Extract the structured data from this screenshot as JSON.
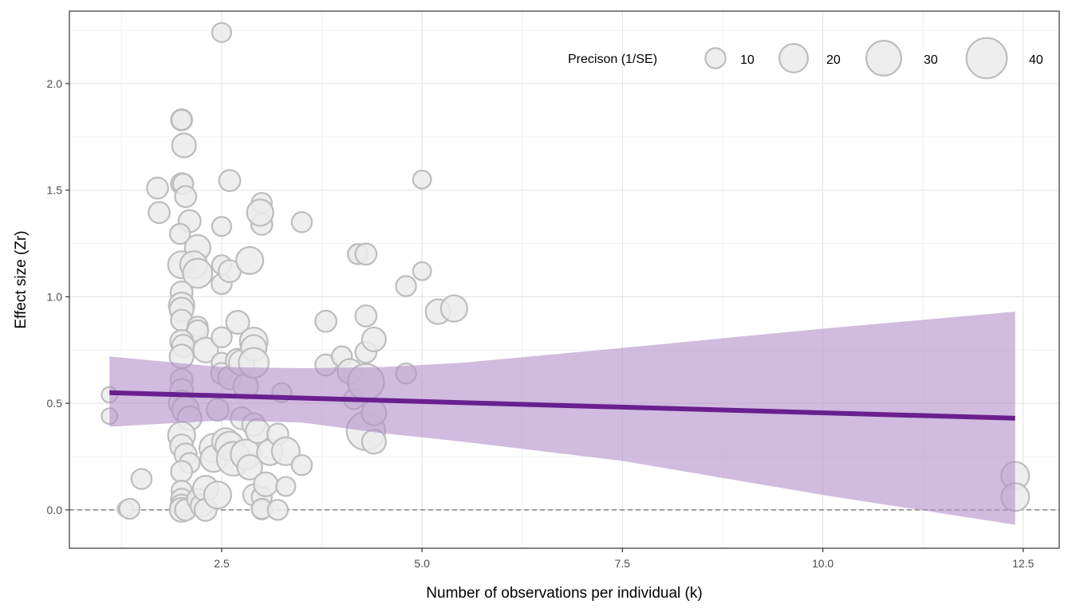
{
  "chart_data": {
    "type": "scatter",
    "title": "",
    "xlabel": "Number of observations per individual (k)",
    "ylabel": "Effect size (Zr)",
    "xlim": [
      0.6,
      12.95
    ],
    "ylim": [
      -0.18,
      2.34
    ],
    "x_ticks": [
      2.5,
      5.0,
      7.5,
      10.0,
      12.5
    ],
    "x_tick_labels": [
      "2.5",
      "5.0",
      "7.5",
      "10.0",
      "12.5"
    ],
    "y_ticks": [
      0.0,
      0.5,
      1.0,
      1.5,
      2.0
    ],
    "y_tick_labels": [
      "0.0",
      "0.5",
      "1.0",
      "1.5",
      "2.0"
    ],
    "grid": true,
    "reference_line": {
      "y": 0,
      "style": "dashed"
    },
    "legend": {
      "title": "Precison (1/SE)",
      "placement": "top-right",
      "sizes": [
        10,
        20,
        30,
        40
      ],
      "labels": [
        "10",
        "20",
        "30",
        "40"
      ]
    },
    "regression": {
      "x_range": [
        1.1,
        12.4
      ],
      "y_start": 0.55,
      "y_end": 0.43,
      "band": [
        {
          "x": 1.1,
          "lo": 0.39,
          "hi": 0.72
        },
        {
          "x": 2.5,
          "lo": 0.42,
          "hi": 0.67
        },
        {
          "x": 3.5,
          "lo": 0.41,
          "hi": 0.665
        },
        {
          "x": 4.5,
          "lo": 0.36,
          "hi": 0.67
        },
        {
          "x": 5.5,
          "lo": 0.32,
          "hi": 0.69
        },
        {
          "x": 7.5,
          "lo": 0.23,
          "hi": 0.76
        },
        {
          "x": 10.0,
          "lo": 0.07,
          "hi": 0.85
        },
        {
          "x": 12.4,
          "lo": -0.07,
          "hi": 0.93
        }
      ]
    },
    "series": [
      {
        "points": [
          {
            "x": 2.5,
            "y": 2.24,
            "p": 9
          },
          {
            "x": 1.1,
            "y": 0.54,
            "p": 6
          },
          {
            "x": 1.1,
            "y": 0.44,
            "p": 6
          },
          {
            "x": 1.3,
            "y": 0.005,
            "p": 6
          },
          {
            "x": 1.35,
            "y": 0.005,
            "p": 10
          },
          {
            "x": 1.5,
            "y": 0.145,
            "p": 10
          },
          {
            "x": 1.7,
            "y": 1.51,
            "p": 11
          },
          {
            "x": 1.72,
            "y": 1.395,
            "p": 11
          },
          {
            "x": 2.0,
            "y": 1.83,
            "p": 11
          },
          {
            "x": 2.0,
            "y": 1.83,
            "p": 10
          },
          {
            "x": 2.03,
            "y": 1.71,
            "p": 14
          },
          {
            "x": 2.0,
            "y": 1.53,
            "p": 11
          },
          {
            "x": 2.02,
            "y": 1.53,
            "p": 10
          },
          {
            "x": 2.05,
            "y": 1.47,
            "p": 11
          },
          {
            "x": 2.1,
            "y": 1.355,
            "p": 12
          },
          {
            "x": 1.98,
            "y": 1.295,
            "p": 10
          },
          {
            "x": 2.2,
            "y": 1.23,
            "p": 16
          },
          {
            "x": 2.0,
            "y": 1.15,
            "p": 18
          },
          {
            "x": 2.15,
            "y": 1.15,
            "p": 18
          },
          {
            "x": 2.2,
            "y": 1.11,
            "p": 21
          },
          {
            "x": 2.0,
            "y": 1.02,
            "p": 12
          },
          {
            "x": 2.0,
            "y": 0.96,
            "p": 16
          },
          {
            "x": 2.0,
            "y": 0.94,
            "p": 14
          },
          {
            "x": 2.0,
            "y": 0.89,
            "p": 11
          },
          {
            "x": 2.2,
            "y": 0.86,
            "p": 10
          },
          {
            "x": 2.2,
            "y": 0.84,
            "p": 11
          },
          {
            "x": 2.0,
            "y": 0.79,
            "p": 13
          },
          {
            "x": 2.02,
            "y": 0.77,
            "p": 12
          },
          {
            "x": 2.0,
            "y": 0.72,
            "p": 14
          },
          {
            "x": 2.3,
            "y": 0.75,
            "p": 15
          },
          {
            "x": 2.0,
            "y": 0.61,
            "p": 12
          },
          {
            "x": 2.0,
            "y": 0.56,
            "p": 13
          },
          {
            "x": 2.0,
            "y": 0.5,
            "p": 16
          },
          {
            "x": 2.05,
            "y": 0.47,
            "p": 18
          },
          {
            "x": 2.1,
            "y": 0.43,
            "p": 14
          },
          {
            "x": 2.0,
            "y": 0.35,
            "p": 18
          },
          {
            "x": 2.0,
            "y": 0.3,
            "p": 13
          },
          {
            "x": 2.05,
            "y": 0.26,
            "p": 12
          },
          {
            "x": 2.1,
            "y": 0.22,
            "p": 10
          },
          {
            "x": 2.0,
            "y": 0.18,
            "p": 11
          },
          {
            "x": 2.0,
            "y": 0.09,
            "p": 10
          },
          {
            "x": 2.0,
            "y": 0.05,
            "p": 11
          },
          {
            "x": 2.0,
            "y": 0.02,
            "p": 12
          },
          {
            "x": 2.0,
            "y": 0.0,
            "p": 14
          },
          {
            "x": 2.05,
            "y": 0.0,
            "p": 11
          },
          {
            "x": 2.2,
            "y": 0.05,
            "p": 11
          },
          {
            "x": 2.25,
            "y": 0.02,
            "p": 12
          },
          {
            "x": 2.3,
            "y": 0.1,
            "p": 16
          },
          {
            "x": 2.3,
            "y": 0.0,
            "p": 12
          },
          {
            "x": 2.4,
            "y": 0.29,
            "p": 20
          },
          {
            "x": 2.4,
            "y": 0.24,
            "p": 17
          },
          {
            "x": 2.45,
            "y": 0.07,
            "p": 18
          },
          {
            "x": 2.45,
            "y": 0.47,
            "p": 12
          },
          {
            "x": 2.5,
            "y": 1.33,
            "p": 9
          },
          {
            "x": 2.5,
            "y": 1.15,
            "p": 9
          },
          {
            "x": 2.5,
            "y": 1.06,
            "p": 10
          },
          {
            "x": 2.6,
            "y": 1.545,
            "p": 11
          },
          {
            "x": 2.6,
            "y": 1.12,
            "p": 12
          },
          {
            "x": 2.5,
            "y": 0.81,
            "p": 10
          },
          {
            "x": 2.5,
            "y": 0.69,
            "p": 10
          },
          {
            "x": 2.5,
            "y": 0.64,
            "p": 11
          },
          {
            "x": 2.6,
            "y": 0.62,
            "p": 13
          },
          {
            "x": 2.55,
            "y": 0.32,
            "p": 18
          },
          {
            "x": 2.6,
            "y": 0.3,
            "p": 20
          },
          {
            "x": 2.65,
            "y": 0.24,
            "p": 28
          },
          {
            "x": 2.7,
            "y": 0.88,
            "p": 13
          },
          {
            "x": 2.7,
            "y": 0.7,
            "p": 14
          },
          {
            "x": 2.75,
            "y": 0.69,
            "p": 16
          },
          {
            "x": 2.75,
            "y": 0.43,
            "p": 12
          },
          {
            "x": 2.8,
            "y": 0.58,
            "p": 15
          },
          {
            "x": 2.8,
            "y": 0.26,
            "p": 22
          },
          {
            "x": 2.85,
            "y": 0.2,
            "p": 15
          },
          {
            "x": 2.85,
            "y": 1.17,
            "p": 18
          },
          {
            "x": 2.9,
            "y": 0.79,
            "p": 19
          },
          {
            "x": 2.9,
            "y": 0.76,
            "p": 16
          },
          {
            "x": 2.9,
            "y": 0.69,
            "p": 22
          },
          {
            "x": 2.9,
            "y": 0.4,
            "p": 13
          },
          {
            "x": 2.95,
            "y": 0.37,
            "p": 14
          },
          {
            "x": 2.9,
            "y": 0.07,
            "p": 11
          },
          {
            "x": 3.0,
            "y": 0.06,
            "p": 10
          },
          {
            "x": 3.0,
            "y": 0.0,
            "p": 9
          },
          {
            "x": 3.0,
            "y": 0.005,
            "p": 10
          },
          {
            "x": 3.0,
            "y": 1.44,
            "p": 10
          },
          {
            "x": 3.0,
            "y": 1.34,
            "p": 11
          },
          {
            "x": 2.98,
            "y": 1.395,
            "p": 17
          },
          {
            "x": 3.05,
            "y": 0.12,
            "p": 14
          },
          {
            "x": 3.1,
            "y": 0.27,
            "p": 16
          },
          {
            "x": 3.2,
            "y": 0.355,
            "p": 11
          },
          {
            "x": 3.25,
            "y": 0.55,
            "p": 9
          },
          {
            "x": 3.3,
            "y": 0.275,
            "p": 19
          },
          {
            "x": 3.3,
            "y": 0.11,
            "p": 9
          },
          {
            "x": 3.2,
            "y": 0.0,
            "p": 10
          },
          {
            "x": 3.5,
            "y": 1.35,
            "p": 10
          },
          {
            "x": 3.5,
            "y": 0.21,
            "p": 10
          },
          {
            "x": 3.8,
            "y": 0.885,
            "p": 11
          },
          {
            "x": 3.8,
            "y": 0.68,
            "p": 11
          },
          {
            "x": 4.0,
            "y": 0.72,
            "p": 10
          },
          {
            "x": 4.1,
            "y": 0.65,
            "p": 15
          },
          {
            "x": 4.15,
            "y": 0.52,
            "p": 10
          },
          {
            "x": 4.2,
            "y": 1.2,
            "p": 9
          },
          {
            "x": 4.2,
            "y": 1.2,
            "p": 10
          },
          {
            "x": 4.3,
            "y": 1.2,
            "p": 11
          },
          {
            "x": 4.3,
            "y": 0.91,
            "p": 11
          },
          {
            "x": 4.3,
            "y": 0.74,
            "p": 11
          },
          {
            "x": 4.3,
            "y": 0.6,
            "p": 32
          },
          {
            "x": 4.3,
            "y": 0.37,
            "p": 36
          },
          {
            "x": 4.4,
            "y": 0.8,
            "p": 14
          },
          {
            "x": 4.4,
            "y": 0.455,
            "p": 15
          },
          {
            "x": 4.4,
            "y": 0.32,
            "p": 14
          },
          {
            "x": 4.8,
            "y": 1.05,
            "p": 10
          },
          {
            "x": 4.8,
            "y": 0.64,
            "p": 10
          },
          {
            "x": 5.0,
            "y": 1.55,
            "p": 8
          },
          {
            "x": 5.0,
            "y": 1.12,
            "p": 8
          },
          {
            "x": 5.2,
            "y": 0.93,
            "p": 15
          },
          {
            "x": 5.4,
            "y": 0.945,
            "p": 17
          },
          {
            "x": 12.4,
            "y": 0.16,
            "p": 19
          },
          {
            "x": 12.4,
            "y": 0.06,
            "p": 19
          }
        ]
      }
    ],
    "colors": {
      "point_fill": "#ebebeb",
      "point_stroke": "#bdbdbd",
      "line": "#6a1f8f",
      "band": "#b28ec9"
    }
  }
}
